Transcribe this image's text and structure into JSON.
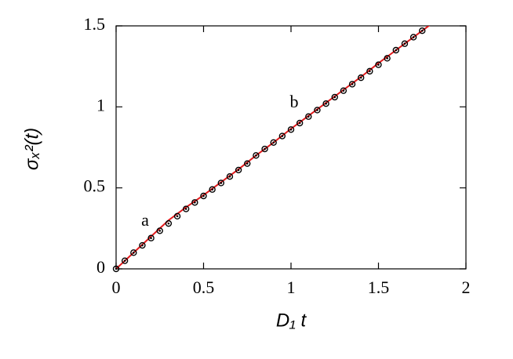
{
  "chart_data": {
    "type": "line",
    "xlabel": "D₁ t",
    "ylabel": "σₓ²(t)",
    "annotations": [
      "a",
      "b"
    ],
    "xlim": [
      0,
      2
    ],
    "ylim": [
      0,
      1.5
    ],
    "xticks": [
      0,
      0.5,
      1,
      1.5,
      2
    ],
    "yticks": [
      0,
      0.5,
      1,
      1.5
    ],
    "series": [
      {
        "color": "#e41a1c",
        "style": "line",
        "x": [
          0,
          0.1,
          0.2,
          0.3,
          0.4,
          0.5,
          0.6,
          0.7,
          0.8,
          0.9,
          1.0,
          1.1,
          1.2,
          1.3,
          1.4,
          1.5,
          1.6,
          1.7,
          1.8
        ],
        "values": [
          0,
          0.1,
          0.2,
          0.3,
          0.38,
          0.455,
          0.535,
          0.615,
          0.7,
          0.78,
          0.865,
          0.945,
          1.025,
          1.105,
          1.185,
          1.27,
          1.35,
          1.43,
          1.51
        ]
      },
      {
        "color": "#000000",
        "style": "markers",
        "x": [
          0,
          0.05,
          0.1,
          0.15,
          0.2,
          0.25,
          0.3,
          0.35,
          0.4,
          0.45,
          0.5,
          0.55,
          0.6,
          0.65,
          0.7,
          0.75,
          0.8,
          0.85,
          0.9,
          0.95,
          1.0,
          1.05,
          1.1,
          1.15,
          1.2,
          1.25,
          1.3,
          1.35,
          1.4,
          1.45,
          1.5,
          1.55,
          1.6,
          1.65,
          1.7,
          1.75
        ],
        "values": [
          0,
          0.05,
          0.1,
          0.145,
          0.19,
          0.235,
          0.28,
          0.325,
          0.37,
          0.41,
          0.45,
          0.49,
          0.53,
          0.57,
          0.61,
          0.65,
          0.7,
          0.74,
          0.78,
          0.82,
          0.86,
          0.9,
          0.94,
          0.98,
          1.02,
          1.06,
          1.1,
          1.14,
          1.18,
          1.22,
          1.26,
          1.3,
          1.35,
          1.39,
          1.43,
          1.47
        ]
      }
    ]
  }
}
